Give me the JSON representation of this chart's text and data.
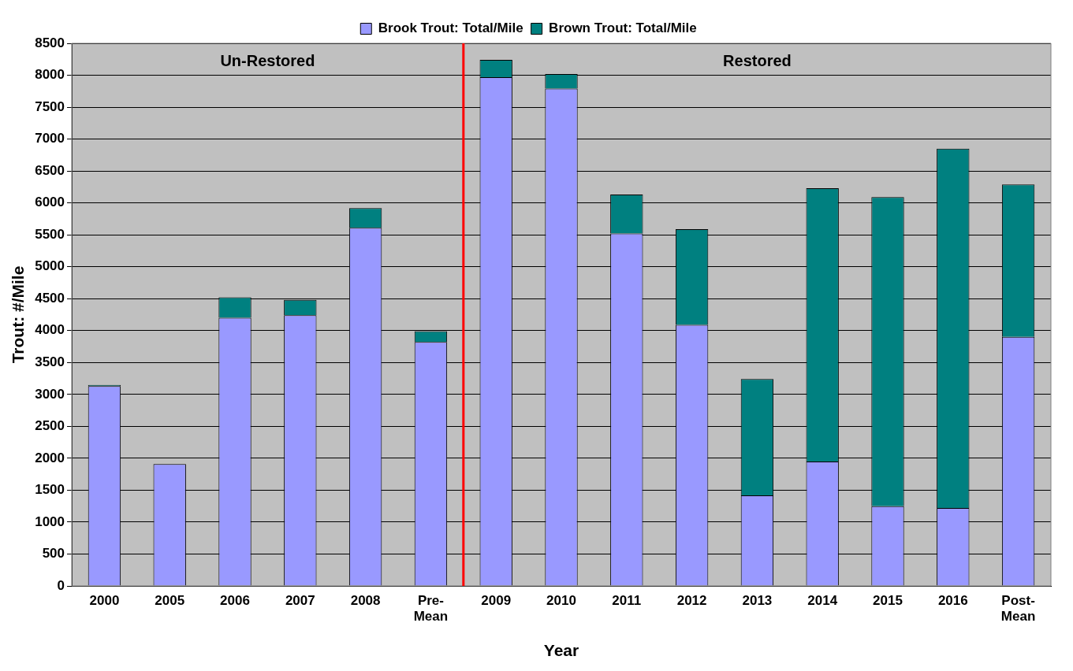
{
  "chart_data": {
    "type": "bar",
    "stacked": true,
    "xlabel": "Year",
    "ylabel": "Trout: #/Mile",
    "categories": [
      "2000",
      "2005",
      "2006",
      "2007",
      "2008",
      "Pre-Mean",
      "2009",
      "2010",
      "2011",
      "2012",
      "2013",
      "2014",
      "2015",
      "2016",
      "Post-Mean"
    ],
    "series": [
      {
        "name": "Brook Trout: Total/Mile",
        "color": "#9999ff",
        "values": [
          3130,
          1910,
          4200,
          4240,
          5610,
          3820,
          7970,
          7790,
          5520,
          4090,
          1420,
          1950,
          1250,
          1220,
          3900
        ]
      },
      {
        "name": "Brown Trout: Total/Mile",
        "color": "#008080",
        "values": [
          20,
          0,
          320,
          240,
          310,
          170,
          270,
          230,
          610,
          1500,
          1820,
          4280,
          4840,
          5630,
          2390
        ]
      }
    ],
    "ylim": [
      0,
      8500
    ],
    "yticks": [
      0,
      500,
      1000,
      1500,
      2000,
      2500,
      3000,
      3500,
      4000,
      4500,
      5000,
      5500,
      6000,
      6500,
      7000,
      7500,
      8000,
      8500
    ],
    "grid": "y",
    "legend": "top",
    "ref_lines": [
      {
        "axis": "x",
        "value": "2009",
        "color": "#ff0000"
      }
    ],
    "annotations": [
      "Un-Restored",
      "Restored"
    ]
  }
}
